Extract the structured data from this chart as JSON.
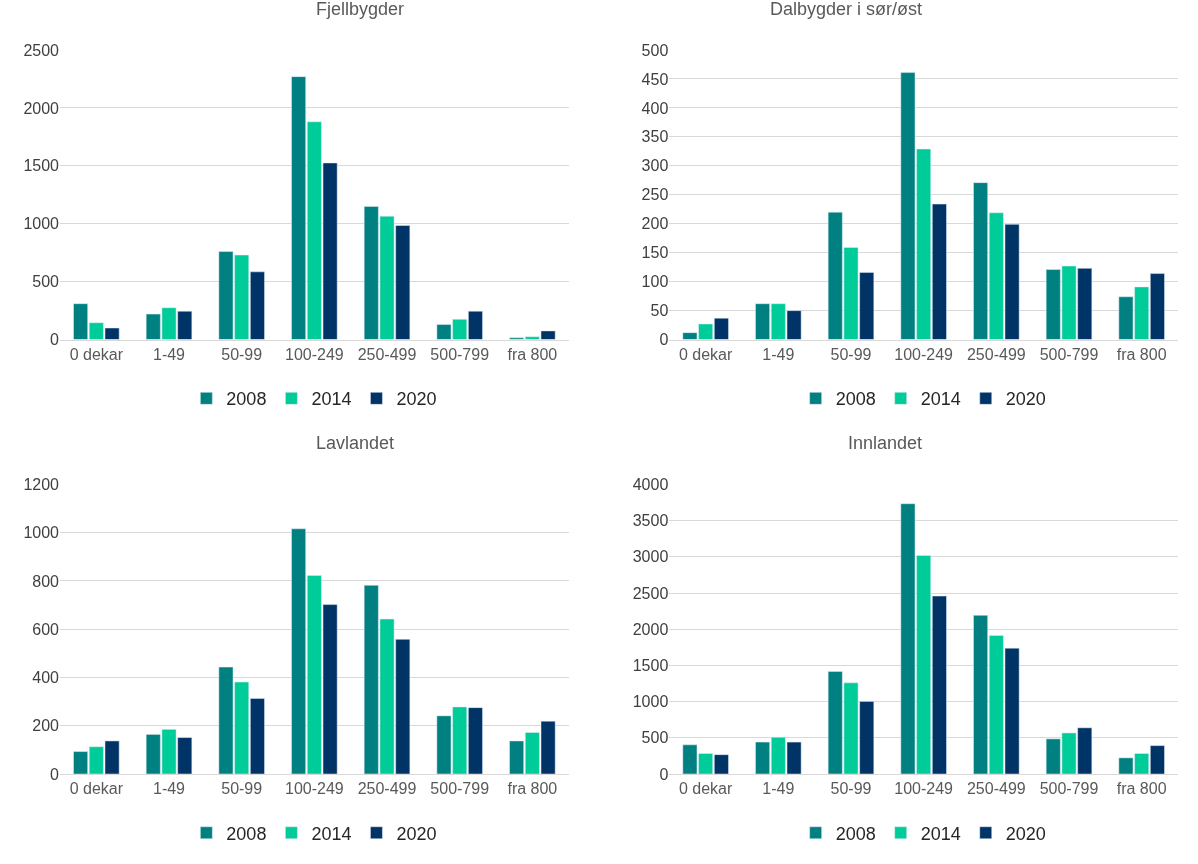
{
  "chart_data": [
    {
      "type": "bar",
      "title": "Fjellbygder",
      "categories": [
        "0 dekar",
        "1-49",
        "50-99",
        "100-249",
        "250-499",
        "500-799",
        "fra 800"
      ],
      "ylim": [
        0,
        2500
      ],
      "yticks": [
        0,
        500,
        1000,
        1500,
        2000,
        2500
      ],
      "grid": "y",
      "legend": "bottom",
      "series": [
        {
          "name": "2008",
          "color": "#008080",
          "values": [
            310,
            220,
            760,
            2270,
            1150,
            130,
            15
          ]
        },
        {
          "name": "2014",
          "color": "#00cc99",
          "values": [
            145,
            275,
            730,
            1880,
            1065,
            175,
            25
          ]
        },
        {
          "name": "2020",
          "color": "#003366",
          "values": [
            100,
            245,
            585,
            1525,
            985,
            245,
            75
          ]
        }
      ]
    },
    {
      "type": "bar",
      "title": "Dalbygder i sør/øst",
      "categories": [
        "0 dekar",
        "1-49",
        "50-99",
        "100-249",
        "250-499",
        "500-799",
        "fra 800"
      ],
      "ylim": [
        0,
        500
      ],
      "yticks": [
        0,
        50,
        100,
        150,
        200,
        250,
        300,
        350,
        400,
        450,
        500
      ],
      "grid": "y",
      "legend": "bottom",
      "series": [
        {
          "name": "2008",
          "color": "#008080",
          "values": [
            12,
            62,
            220,
            461,
            271,
            121,
            74
          ]
        },
        {
          "name": "2014",
          "color": "#00cc99",
          "values": [
            27,
            62,
            159,
            329,
            219,
            127,
            91
          ]
        },
        {
          "name": "2020",
          "color": "#003366",
          "values": [
            37,
            50,
            116,
            234,
            199,
            123,
            114
          ]
        }
      ]
    },
    {
      "type": "bar",
      "title": "Lavlandet",
      "categories": [
        "0 dekar",
        "1-49",
        "50-99",
        "100-249",
        "250-499",
        "500-799",
        "fra 800"
      ],
      "ylim": [
        0,
        1200
      ],
      "yticks": [
        0,
        200,
        400,
        600,
        800,
        1000,
        1200
      ],
      "grid": "y",
      "legend": "bottom",
      "series": [
        {
          "name": "2008",
          "color": "#008080",
          "values": [
            93,
            164,
            443,
            1016,
            782,
            241,
            137
          ]
        },
        {
          "name": "2014",
          "color": "#00cc99",
          "values": [
            113,
            185,
            381,
            823,
            642,
            278,
            172
          ]
        },
        {
          "name": "2020",
          "color": "#003366",
          "values": [
            137,
            151,
            313,
            702,
            558,
            275,
            219
          ]
        }
      ]
    },
    {
      "type": "bar",
      "title": "Innlandet",
      "categories": [
        "0 dekar",
        "1-49",
        "50-99",
        "100-249",
        "250-499",
        "500-799",
        "fra 800"
      ],
      "ylim": [
        0,
        4000
      ],
      "yticks": [
        0,
        500,
        1000,
        1500,
        2000,
        2500,
        3000,
        3500,
        4000
      ],
      "grid": "y",
      "legend": "bottom",
      "series": [
        {
          "name": "2008",
          "color": "#008080",
          "values": [
            403,
            441,
            1417,
            3733,
            2191,
            485,
            223
          ]
        },
        {
          "name": "2014",
          "color": "#00cc99",
          "values": [
            283,
            507,
            1259,
            3019,
            1913,
            567,
            283
          ]
        },
        {
          "name": "2020",
          "color": "#003366",
          "values": [
            267,
            441,
            1003,
            2458,
            1738,
            638,
            392
          ]
        }
      ]
    }
  ]
}
